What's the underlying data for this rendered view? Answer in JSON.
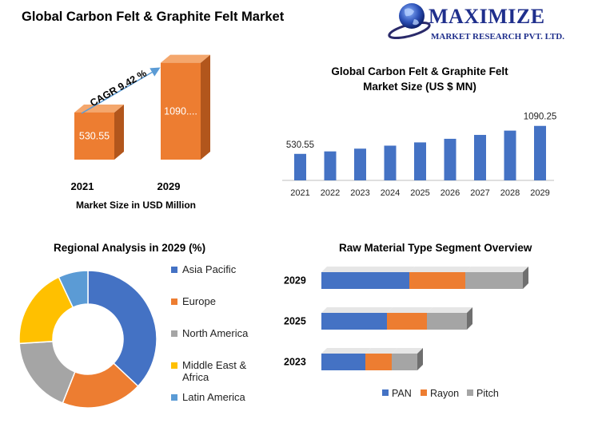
{
  "page": {
    "title": "Global Carbon Felt & Graphite Felt Market"
  },
  "logo": {
    "name": "MAXIMIZE",
    "subtitle": "MARKET RESEARCH PVT. LTD."
  },
  "colors": {
    "orange": "#ed7d31",
    "orange_dark": "#b2561c",
    "blue": "#4472c4",
    "gray": "#a5a5a5",
    "yellow": "#ffc000",
    "light_blue": "#5b9bd5"
  },
  "chart_data": [
    {
      "type": "bar",
      "categories": [
        "2021",
        "2029"
      ],
      "values": [
        530.55,
        1090.25
      ],
      "value_labels": [
        "530.55",
        "1090...."
      ],
      "annotation": "CAGR 9.42 %",
      "xlabel": "Market Size in USD Million",
      "ylim": [
        0,
        1150
      ]
    },
    {
      "type": "bar",
      "title": "Global Carbon Felt & Graphite Felt Market Size (US $ MN)",
      "categories": [
        "2021",
        "2022",
        "2023",
        "2024",
        "2025",
        "2026",
        "2027",
        "2028",
        "2029"
      ],
      "values": [
        530.55,
        580,
        635,
        695,
        760,
        832,
        910,
        996,
        1090.25
      ],
      "value_labels": [
        "530.55",
        "",
        "",
        "",
        "",
        "",
        "",
        "",
        "1090.25"
      ],
      "ylim": [
        0,
        1150
      ]
    },
    {
      "type": "pie",
      "title": "Regional Analysis in 2029 (%)",
      "categories": [
        "Asia Pacific",
        "Europe",
        "North America",
        "Middle East & Africa",
        "Latin America"
      ],
      "values": [
        37,
        19,
        18,
        19,
        7
      ],
      "colors": [
        "#4472c4",
        "#ed7d31",
        "#a5a5a5",
        "#ffc000",
        "#5b9bd5"
      ]
    },
    {
      "type": "bar",
      "orientation": "horizontal",
      "stacked": true,
      "title": "Raw Material Type Segment Overview",
      "categories": [
        "2023",
        "2025",
        "2029"
      ],
      "series": [
        {
          "name": "PAN",
          "values": [
            55,
            82,
            110
          ],
          "color": "#4472c4"
        },
        {
          "name": "Rayon",
          "values": [
            33,
            50,
            70
          ],
          "color": "#ed7d31"
        },
        {
          "name": "Pitch",
          "values": [
            32,
            50,
            72
          ],
          "color": "#a5a5a5"
        }
      ]
    }
  ]
}
